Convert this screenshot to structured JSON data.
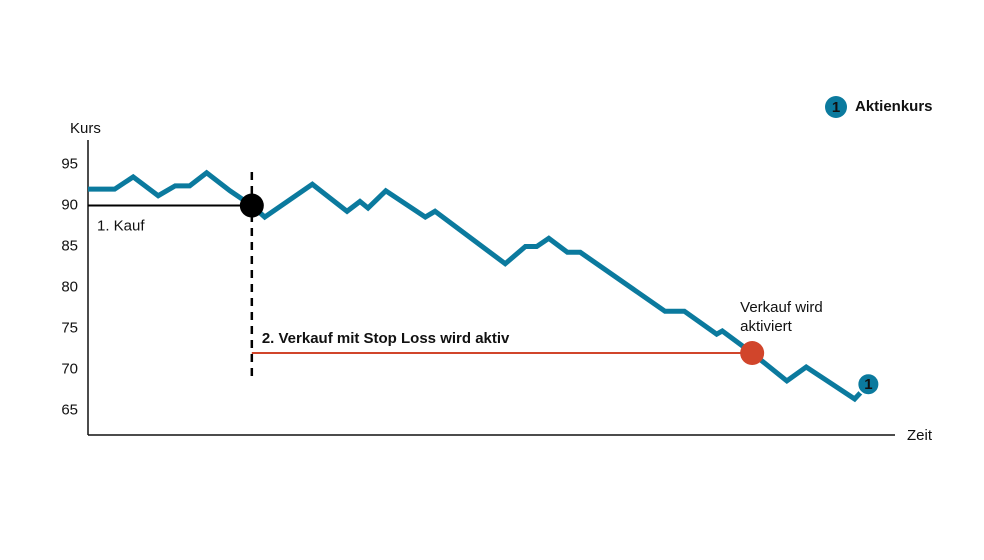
{
  "chart_data": {
    "type": "line",
    "y_label": "Kurs",
    "x_label": "Zeit",
    "xlim": [
      0,
      100
    ],
    "ylim": [
      62,
      98
    ],
    "yticks": [
      65,
      70,
      75,
      80,
      85,
      90,
      95
    ],
    "grid": false,
    "series": [
      {
        "name": "Aktienkurs",
        "marker_label": "1",
        "color": "#0b7a9e",
        "x": [
          0,
          3.3,
          5.6,
          8.7,
          10.8,
          12.6,
          14.7,
          17.6,
          20.3,
          21.9,
          27.8,
          32.1,
          33.7,
          34.7,
          36.9,
          41.8,
          43.0,
          51.7,
          54.2,
          55.6,
          57.1,
          59.4,
          61.0,
          71.5,
          73.9,
          77.9,
          78.6,
          82.3,
          86.6,
          89.0,
          95.0,
          96.7
        ],
        "values": [
          92.0,
          92.0,
          93.5,
          91.2,
          92.4,
          92.4,
          94.0,
          91.8,
          90.0,
          88.6,
          92.6,
          89.3,
          90.5,
          89.7,
          91.8,
          88.6,
          89.3,
          82.9,
          85.0,
          85.0,
          86.0,
          84.3,
          84.3,
          77.1,
          77.1,
          74.3,
          74.7,
          72.0,
          68.6,
          70.3,
          66.4,
          68.2
        ]
      }
    ],
    "legend": "top-right",
    "annotations": {
      "buy": {
        "x": 20.3,
        "y": 90,
        "label": "1. Kauf",
        "color": "#000000"
      },
      "stop_loss": {
        "value": 72,
        "x_start": 20.3,
        "x_end": 82.3,
        "label": "2. Verkauf mit Stop Loss wird aktiv",
        "color": "#d1452b"
      },
      "sell": {
        "x": 82.3,
        "y": 72,
        "label_lines": [
          "Verkauf wird",
          "aktiviert"
        ],
        "color": "#d1452b"
      }
    }
  }
}
